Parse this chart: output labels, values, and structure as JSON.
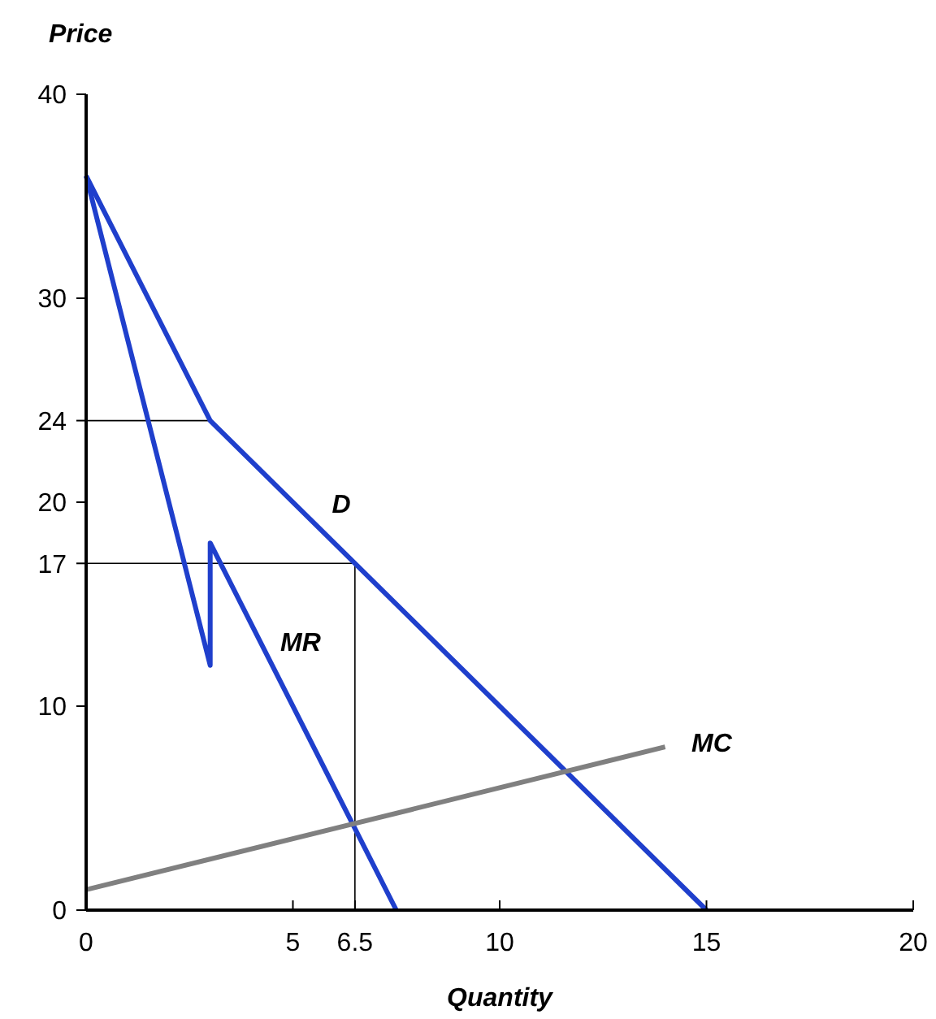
{
  "chart_data": {
    "type": "line",
    "xlabel": "Quantity",
    "ylabel": "Price",
    "xlim": [
      0,
      20
    ],
    "ylim": [
      0,
      40
    ],
    "xticks": [
      0,
      5,
      6.5,
      10,
      15,
      20
    ],
    "yticks": [
      0,
      10,
      17,
      20,
      24,
      30,
      40
    ],
    "marker": "none",
    "line_style": "solid",
    "series": [
      {
        "color": "#000000",
        "x": [
          0,
          3
        ],
        "values": [
          24,
          24
        ]
      },
      {
        "color": "#000000",
        "x": [
          0,
          6.5,
          6.5
        ],
        "values": [
          17,
          17,
          0
        ]
      },
      {
        "name": "D",
        "color": "#1f3fcc",
        "x": [
          0,
          3,
          15
        ],
        "values": [
          36,
          24,
          0
        ]
      },
      {
        "name": "MR",
        "color": "#1f3fcc",
        "x": [
          0,
          3,
          3,
          7.5
        ],
        "values": [
          36,
          12,
          18,
          0
        ]
      },
      {
        "name": "MC",
        "color": "#808080",
        "x": [
          0,
          14
        ],
        "values": [
          1,
          8
        ]
      }
    ]
  }
}
